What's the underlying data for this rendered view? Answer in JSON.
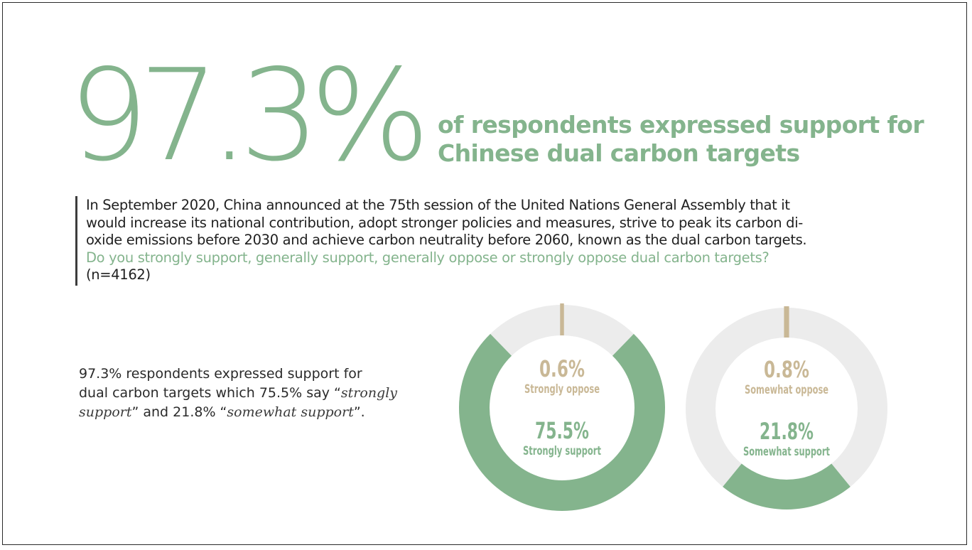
{
  "headline": {
    "big_number": "97.3%",
    "line1": "of respondents expressed support for",
    "line2": "Chinese dual carbon targets"
  },
  "question": {
    "line1": "In September 2020, China announced at the 75th session of the United Nations General Assembly that it",
    "line2": "would increase its national contribution, adopt stronger policies and measures, strive to peak its carbon di-",
    "line3": "oxide emissions before 2030 and achieve carbon neutrality before 2060, known as the dual carbon targets.",
    "question_line": "Do you strongly support, generally support, generally oppose or strongly oppose dual carbon targets?",
    "sample_size": "(n=4162)"
  },
  "summary": {
    "part1": "97.3% respondents expressed support for",
    "part2": "dual carbon targets which 75.5% say “",
    "part3": "strongly",
    "part4": "support",
    "part5": "” and 21.8% “",
    "part6": "somewhat support",
    "part7": "”."
  },
  "colors": {
    "green": "#84b48d",
    "tan": "#c9b896",
    "track": "#ececec"
  },
  "chart_data": [
    {
      "type": "pie",
      "donut": true,
      "slices": [
        {
          "label": "Strongly support",
          "value": 75.5,
          "display": "75.5%",
          "color": "#84b48d"
        },
        {
          "label": "Strongly oppose",
          "value": 0.6,
          "display": "0.6%",
          "color": "#c9b896"
        }
      ]
    },
    {
      "type": "pie",
      "donut": true,
      "slices": [
        {
          "label": "Somewhat support",
          "value": 21.8,
          "display": "21.8%",
          "color": "#84b48d"
        },
        {
          "label": "Somewhat oppose",
          "value": 0.8,
          "display": "0.8%",
          "color": "#c9b896"
        }
      ]
    }
  ]
}
